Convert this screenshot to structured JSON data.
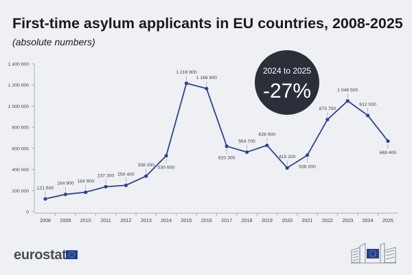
{
  "header": {
    "title": "First-time asylum applicants in EU countries, 2008-2025",
    "subtitle": "(absolute numbers)"
  },
  "callout": {
    "line1": "2024 to 2025",
    "line2": "-27%"
  },
  "footer": {
    "brand": "eurostat"
  },
  "colors": {
    "line": "#2a4590",
    "callout_bg": "#2b2f3a",
    "background": "#eef0f4"
  },
  "chart_data": {
    "type": "line",
    "title": "First-time asylum applicants in EU countries, 2008-2025",
    "subtitle": "(absolute numbers)",
    "xlabel": "",
    "ylabel": "",
    "ylim": [
      0,
      1400000
    ],
    "yticks": [
      0,
      200000,
      400000,
      600000,
      800000,
      1000000,
      1200000,
      1400000
    ],
    "ytick_labels": [
      "0",
      "200 000",
      "400 000",
      "600 000",
      "800 000",
      "1 000 000",
      "1 200 000",
      "1 400 000"
    ],
    "grid": "none",
    "legend": "none",
    "categories": [
      "2008",
      "2009",
      "2010",
      "2011",
      "2012",
      "2013",
      "2014",
      "2015",
      "2016",
      "2017",
      "2018",
      "2019",
      "2020",
      "2021",
      "2022",
      "2023",
      "2024",
      "2025"
    ],
    "values": [
      121600,
      164900,
      184900,
      237300,
      250400,
      338200,
      530600,
      1216900,
      1166800,
      620300,
      564700,
      628900,
      415200,
      536000,
      873700,
      1049500,
      912000,
      669400
    ],
    "value_labels": [
      "121 600",
      "164 900",
      "184 900",
      "237 300",
      "250 400",
      "338 200",
      "530 600",
      "1 216 900",
      "1 166 800",
      "620 300",
      "564 700",
      "628 900",
      "415 200",
      "536 000",
      "873 700",
      "1 049 500",
      "912 000",
      "669 400"
    ],
    "label_position": [
      "above",
      "above",
      "above",
      "above",
      "above",
      "above",
      "below",
      "above",
      "above",
      "below",
      "above",
      "above",
      "above",
      "below",
      "above",
      "above",
      "above",
      "below"
    ]
  }
}
